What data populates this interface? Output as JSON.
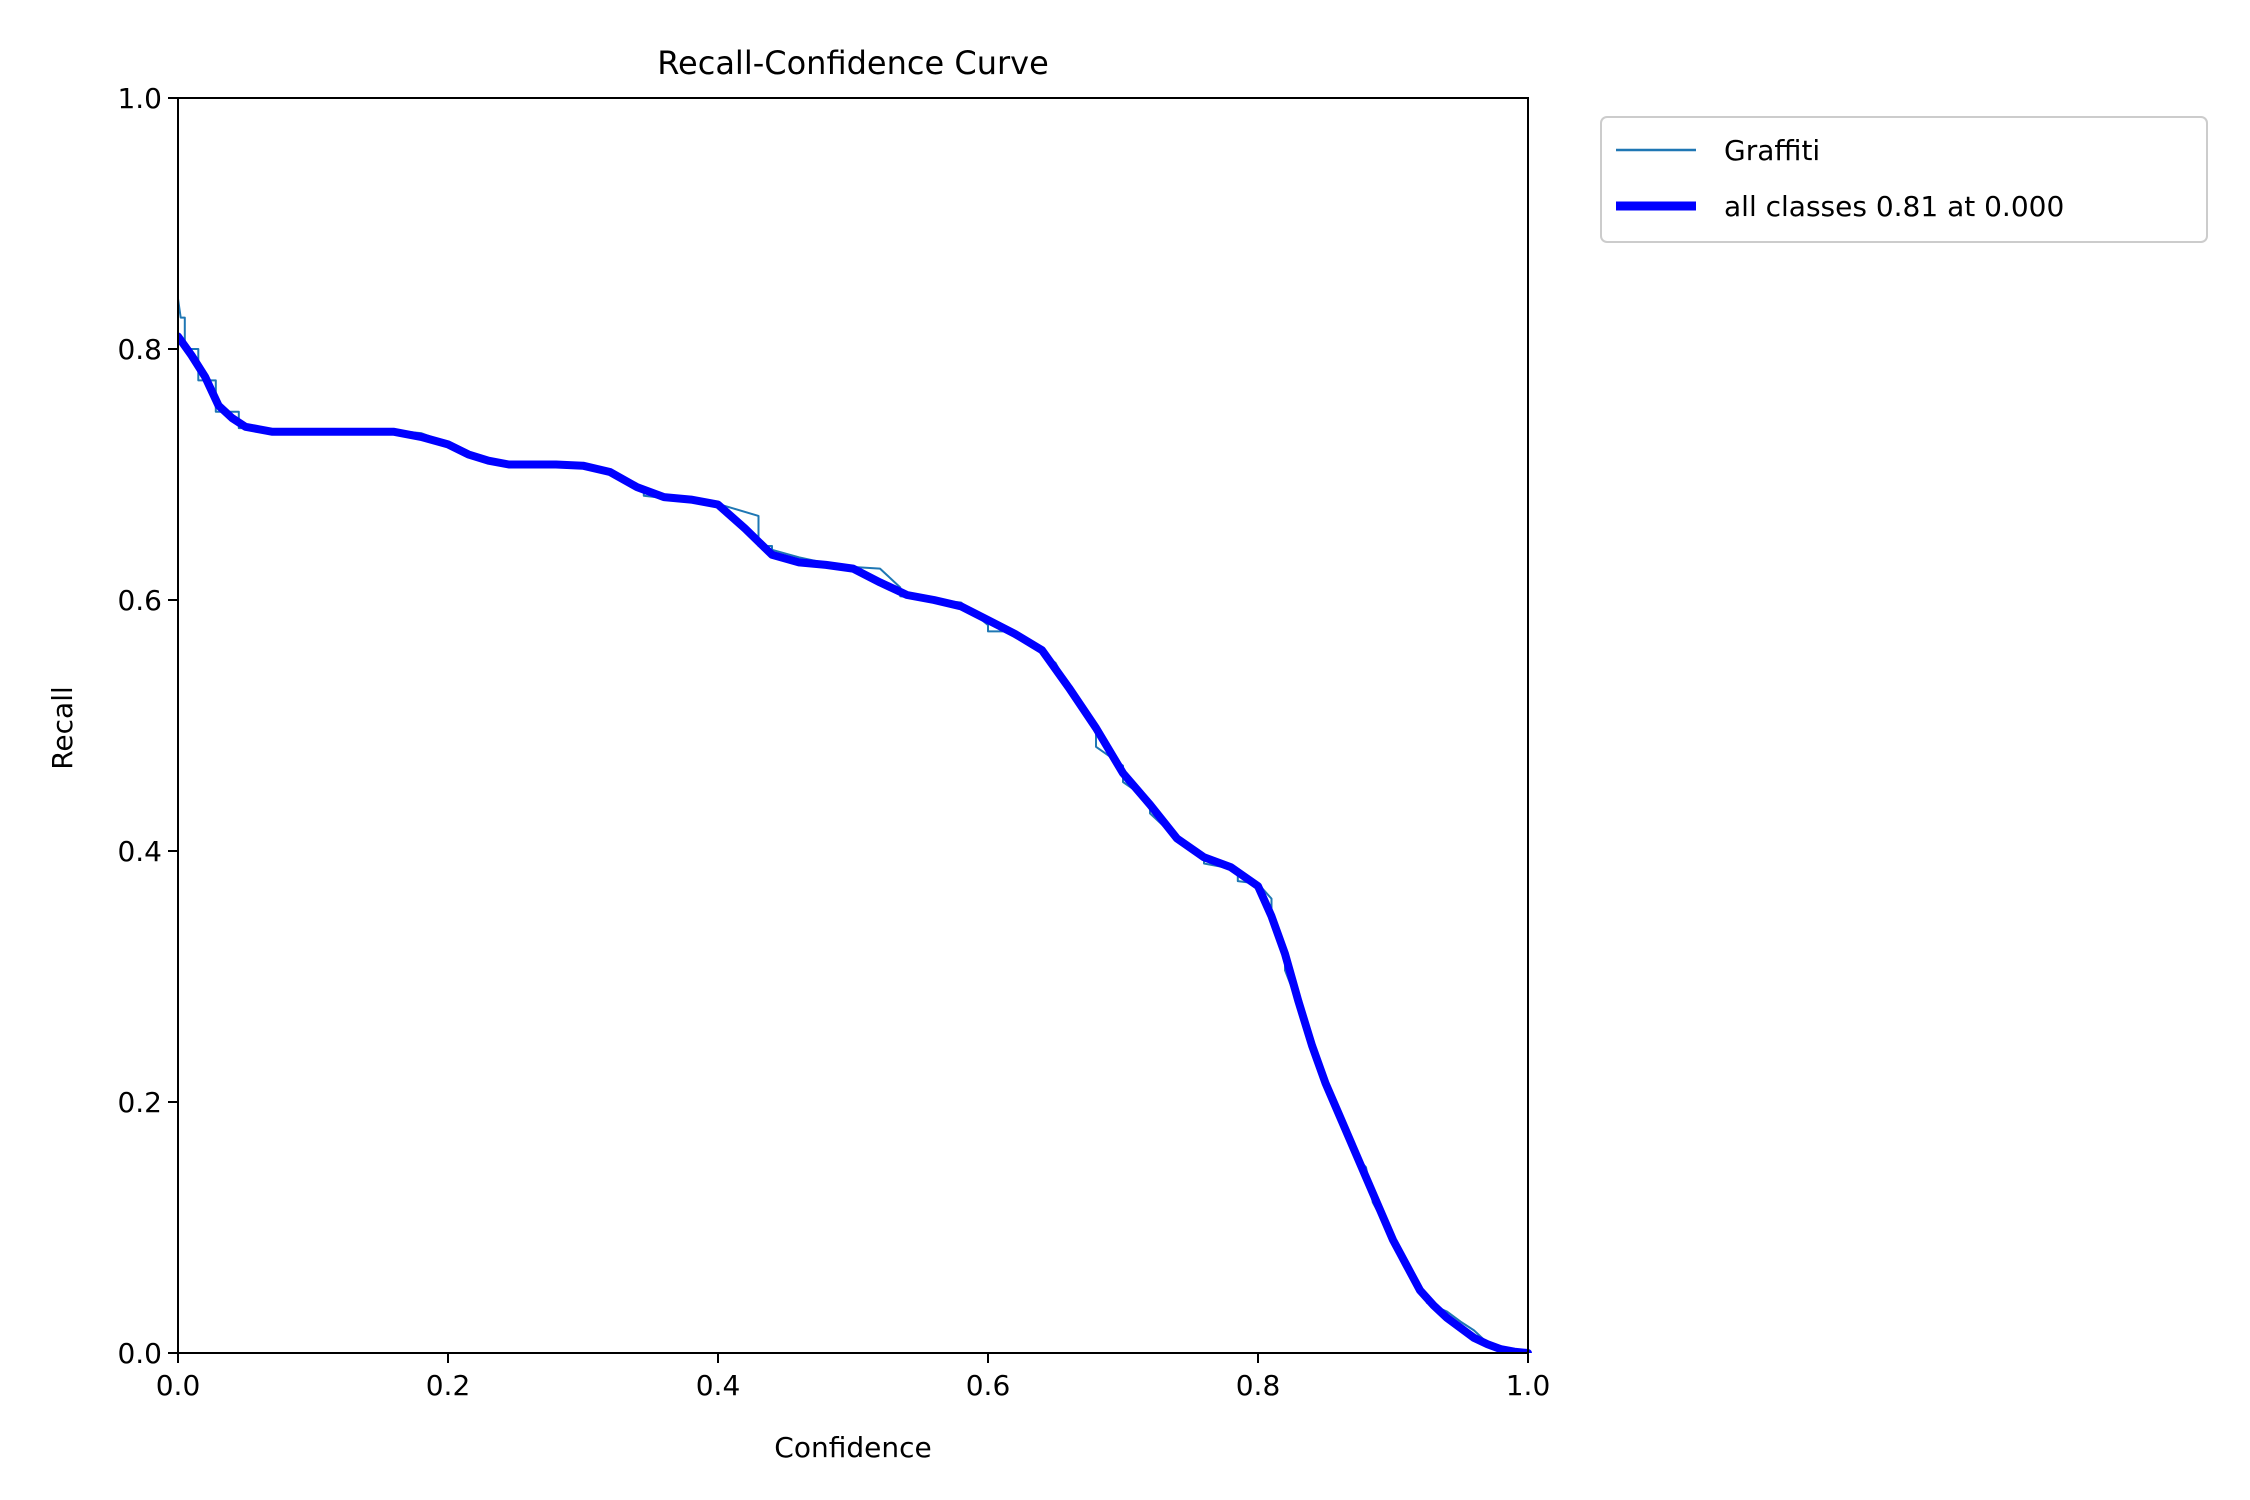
{
  "chart_data": {
    "type": "line",
    "title": "Recall-Confidence Curve",
    "xlabel": "Confidence",
    "ylabel": "Recall",
    "xlim": [
      0,
      1
    ],
    "ylim": [
      0,
      1
    ],
    "xticks": [
      "0.0",
      "0.2",
      "0.4",
      "0.6",
      "0.8",
      "1.0"
    ],
    "yticks": [
      "0.0",
      "0.2",
      "0.4",
      "0.6",
      "0.8",
      "1.0"
    ],
    "grid": false,
    "legend_position": "outside top-right",
    "series": [
      {
        "name": "Graffiti",
        "color": "#1f77b4",
        "style": "thin",
        "x": [
          0.0,
          0.002,
          0.005,
          0.005,
          0.015,
          0.015,
          0.028,
          0.028,
          0.045,
          0.045,
          0.06,
          0.06,
          0.08,
          0.16,
          0.18,
          0.2,
          0.22,
          0.24,
          0.3,
          0.32,
          0.345,
          0.345,
          0.37,
          0.405,
          0.43,
          0.43,
          0.44,
          0.44,
          0.46,
          0.49,
          0.52,
          0.535,
          0.535,
          0.56,
          0.58,
          0.6,
          0.6,
          0.62,
          0.63,
          0.65,
          0.66,
          0.68,
          0.68,
          0.7,
          0.7,
          0.72,
          0.72,
          0.74,
          0.76,
          0.76,
          0.785,
          0.785,
          0.8,
          0.81,
          0.81,
          0.82,
          0.82,
          0.84,
          0.845,
          0.86,
          0.87,
          0.88,
          0.885,
          0.9,
          0.91,
          0.925,
          0.925,
          0.94,
          0.95,
          0.96,
          0.97,
          0.98,
          0.99,
          1.0
        ],
        "y": [
          0.84,
          0.825,
          0.825,
          0.8,
          0.8,
          0.775,
          0.775,
          0.75,
          0.75,
          0.737,
          0.737,
          0.735,
          0.735,
          0.735,
          0.733,
          0.725,
          0.713,
          0.708,
          0.708,
          0.702,
          0.69,
          0.683,
          0.68,
          0.675,
          0.667,
          0.643,
          0.643,
          0.64,
          0.634,
          0.627,
          0.625,
          0.61,
          0.603,
          0.6,
          0.598,
          0.58,
          0.575,
          0.575,
          0.565,
          0.55,
          0.53,
          0.5,
          0.483,
          0.468,
          0.455,
          0.44,
          0.43,
          0.41,
          0.395,
          0.39,
          0.385,
          0.376,
          0.374,
          0.362,
          0.35,
          0.31,
          0.305,
          0.25,
          0.225,
          0.19,
          0.16,
          0.148,
          0.12,
          0.09,
          0.07,
          0.042,
          0.04,
          0.033,
          0.025,
          0.018,
          0.008,
          0.003,
          0.0,
          0.0
        ]
      },
      {
        "name": "all classes 0.81 at 0.000",
        "color": "#0000ff",
        "style": "thick",
        "x": [
          0.0,
          0.01,
          0.02,
          0.03,
          0.04,
          0.05,
          0.06,
          0.07,
          0.08,
          0.1,
          0.12,
          0.14,
          0.16,
          0.18,
          0.2,
          0.215,
          0.23,
          0.245,
          0.26,
          0.28,
          0.3,
          0.32,
          0.34,
          0.36,
          0.38,
          0.4,
          0.42,
          0.44,
          0.46,
          0.48,
          0.5,
          0.52,
          0.54,
          0.56,
          0.58,
          0.6,
          0.62,
          0.64,
          0.66,
          0.68,
          0.7,
          0.72,
          0.74,
          0.76,
          0.78,
          0.8,
          0.81,
          0.82,
          0.83,
          0.84,
          0.85,
          0.86,
          0.87,
          0.88,
          0.89,
          0.9,
          0.91,
          0.92,
          0.93,
          0.94,
          0.95,
          0.96,
          0.97,
          0.98,
          0.99,
          1.0
        ],
        "y": [
          0.81,
          0.795,
          0.778,
          0.755,
          0.745,
          0.738,
          0.736,
          0.734,
          0.734,
          0.734,
          0.734,
          0.734,
          0.734,
          0.73,
          0.724,
          0.716,
          0.711,
          0.708,
          0.708,
          0.708,
          0.707,
          0.702,
          0.69,
          0.682,
          0.68,
          0.676,
          0.657,
          0.636,
          0.63,
          0.628,
          0.625,
          0.614,
          0.604,
          0.6,
          0.595,
          0.584,
          0.573,
          0.56,
          0.53,
          0.498,
          0.462,
          0.437,
          0.41,
          0.395,
          0.387,
          0.372,
          0.348,
          0.318,
          0.28,
          0.245,
          0.215,
          0.19,
          0.165,
          0.14,
          0.115,
          0.09,
          0.07,
          0.05,
          0.038,
          0.028,
          0.02,
          0.012,
          0.007,
          0.003,
          0.001,
          0.0
        ]
      }
    ]
  }
}
